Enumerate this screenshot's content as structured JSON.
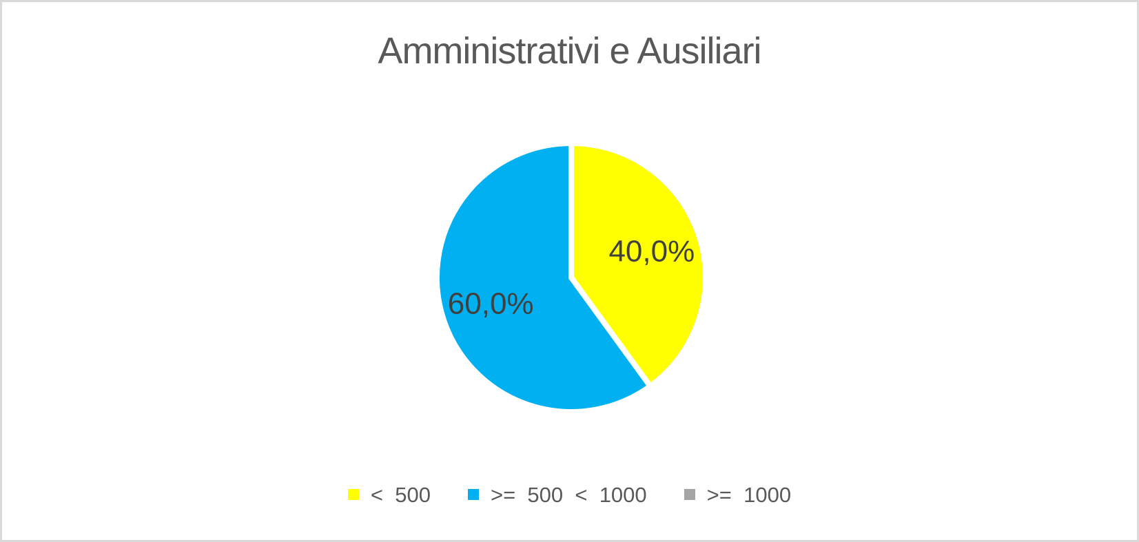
{
  "window": {
    "background_color": "#FFFFFF",
    "frame_border_color": "#D9D9D9"
  },
  "chart": {
    "title": "Amministrativi e Ausiliari",
    "title_color": "#595959",
    "data_label_color": "#404040",
    "legend_text_color": "#595959",
    "slice_separator_color": "#FFFFFF"
  },
  "chart_data": {
    "type": "pie",
    "title": "Amministrativi e Ausiliari",
    "categories": [
      "< 500",
      ">= 500 < 1000",
      ">= 1000"
    ],
    "values": [
      40.0,
      60.0,
      0.0
    ],
    "data_labels": [
      "40,0%",
      "60,0%",
      ""
    ],
    "colors": [
      "#FFFF00",
      "#00B0F0",
      "#A5A5A5"
    ],
    "start_angle_deg": 0,
    "direction": "clockwise",
    "radius_px": 195,
    "label_radius_fraction": 0.63,
    "legend_position": "bottom",
    "grid": false
  },
  "legend": {
    "items": [
      {
        "label": "<  500",
        "color": "#FFFF00"
      },
      {
        "label": ">=  500  <  1000",
        "color": "#00B0F0"
      },
      {
        "label": ">=  1000",
        "color": "#A5A5A5"
      }
    ]
  }
}
